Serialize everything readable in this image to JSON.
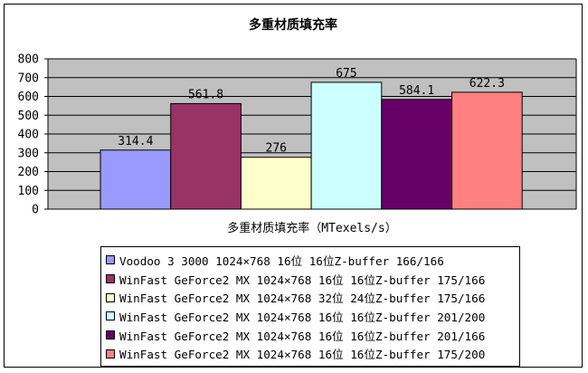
{
  "chart_data": {
    "type": "bar",
    "title": "多重材质填充率",
    "xlabel": "多重材质填充率（MTexels/s）",
    "ylabel": "",
    "ylim": [
      0,
      800
    ],
    "yticks": [
      "0",
      "100",
      "200",
      "300",
      "400",
      "500",
      "600",
      "700",
      "800"
    ],
    "grid": true,
    "legend_position": "bottom",
    "series": [
      {
        "name": "Voodoo 3 3000 1024×768 16位 16位Z-buffer 166/166",
        "value": 314.4,
        "label": "314.4",
        "color": "#9999ff"
      },
      {
        "name": "WinFast GeForce2 MX 1024×768 16位 16位Z-buffer 175/166",
        "value": 561.8,
        "label": "561.8",
        "color": "#993366"
      },
      {
        "name": "WinFast GeForce2 MX 1024×768 32位 24位Z-buffer 175/166",
        "value": 276,
        "label": "276",
        "color": "#ffffcc"
      },
      {
        "name": "WinFast GeForce2 MX 1024×768 16位 16位Z-buffer 201/200",
        "value": 675,
        "label": "675",
        "color": "#ccffff"
      },
      {
        "name": "WinFast GeForce2 MX 1024×768 16位 16位Z-buffer 201/166",
        "value": 584.1,
        "label": "584.1",
        "color": "#660066"
      },
      {
        "name": "WinFast GeForce2 MX 1024×768 16位 16位Z-buffer 175/200",
        "value": 622.3,
        "label": "622.3",
        "color": "#ff8080"
      }
    ],
    "plot_area_color": "#c0c0c0"
  }
}
